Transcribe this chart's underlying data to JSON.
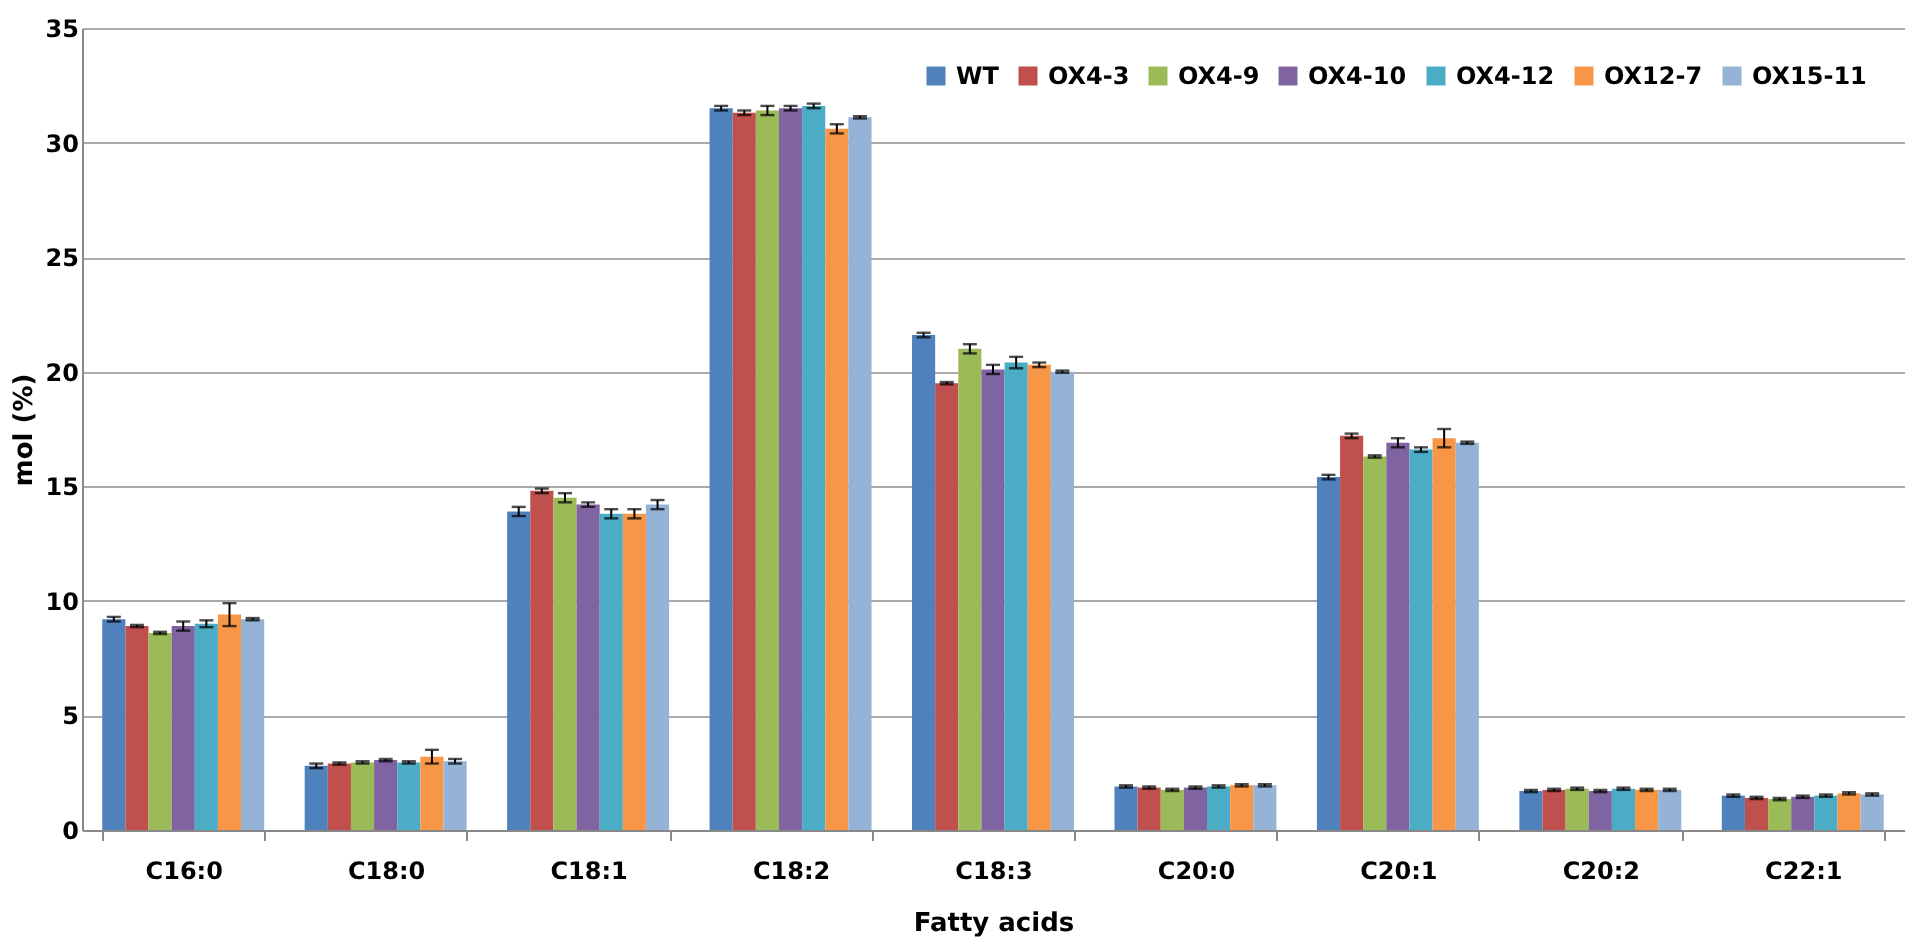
{
  "chart_data": {
    "type": "bar",
    "xlabel": "Fatty acids",
    "ylabel": "mol (%)",
    "categories": [
      "C16:0",
      "C18:0",
      "C18:1",
      "C18:2",
      "C18:3",
      "C20:0",
      "C20:1",
      "C20:2",
      "C22:1"
    ],
    "series": [
      {
        "name": "WT",
        "color": "#4f81bd",
        "values": [
          9.2,
          2.8,
          13.9,
          31.5,
          21.6,
          1.9,
          15.4,
          1.7,
          1.5
        ],
        "errors": [
          0.1,
          0.1,
          0.2,
          0.1,
          0.1,
          0.05,
          0.1,
          0.05,
          0.05
        ]
      },
      {
        "name": "OX4-3",
        "color": "#c0504d",
        "values": [
          8.9,
          2.9,
          14.8,
          31.3,
          19.5,
          1.85,
          17.2,
          1.75,
          1.4
        ],
        "errors": [
          0.05,
          0.05,
          0.1,
          0.1,
          0.05,
          0.05,
          0.1,
          0.05,
          0.05
        ]
      },
      {
        "name": "OX4-9",
        "color": "#9bbb59",
        "values": [
          8.6,
          2.95,
          14.5,
          31.4,
          21.0,
          1.75,
          16.3,
          1.8,
          1.35
        ],
        "errors": [
          0.05,
          0.05,
          0.2,
          0.2,
          0.2,
          0.05,
          0.05,
          0.05,
          0.05
        ]
      },
      {
        "name": "OX4-10",
        "color": "#8064a2",
        "values": [
          8.9,
          3.05,
          14.2,
          31.5,
          20.1,
          1.85,
          16.9,
          1.7,
          1.45
        ],
        "errors": [
          0.2,
          0.05,
          0.1,
          0.1,
          0.2,
          0.05,
          0.2,
          0.05,
          0.05
        ]
      },
      {
        "name": "OX4-12",
        "color": "#4bacc6",
        "values": [
          9.0,
          2.95,
          13.8,
          31.6,
          20.4,
          1.9,
          16.6,
          1.8,
          1.5
        ],
        "errors": [
          0.15,
          0.05,
          0.2,
          0.1,
          0.25,
          0.05,
          0.1,
          0.05,
          0.05
        ]
      },
      {
        "name": "OX12-7",
        "color": "#f79646",
        "values": [
          9.4,
          3.2,
          13.8,
          30.6,
          20.3,
          1.95,
          17.1,
          1.75,
          1.6
        ],
        "errors": [
          0.5,
          0.3,
          0.2,
          0.2,
          0.1,
          0.05,
          0.4,
          0.05,
          0.05
        ]
      },
      {
        "name": "OX15-11",
        "color": "#95b3d7",
        "values": [
          9.2,
          3.0,
          14.2,
          31.1,
          20.0,
          1.95,
          16.9,
          1.75,
          1.55
        ],
        "errors": [
          0.05,
          0.1,
          0.2,
          0.05,
          0.05,
          0.05,
          0.05,
          0.05,
          0.05
        ]
      }
    ],
    "ylim": [
      0,
      35
    ],
    "yticks": [
      0,
      5,
      10,
      15,
      20,
      25,
      30,
      35
    ],
    "grid": "y",
    "legend": "top right"
  }
}
